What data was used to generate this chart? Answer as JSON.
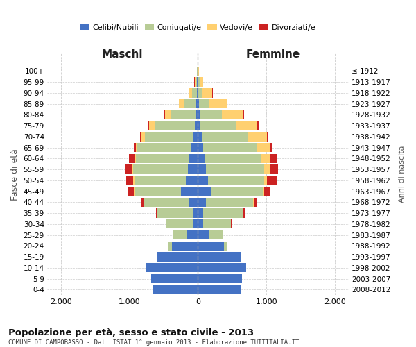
{
  "age_groups": [
    "0-4",
    "5-9",
    "10-14",
    "15-19",
    "20-24",
    "25-29",
    "30-34",
    "35-39",
    "40-44",
    "45-49",
    "50-54",
    "55-59",
    "60-64",
    "65-69",
    "70-74",
    "75-79",
    "80-84",
    "85-89",
    "90-94",
    "95-99",
    "100+"
  ],
  "birth_years": [
    "2008-2012",
    "2003-2007",
    "1998-2002",
    "1993-1997",
    "1988-1992",
    "1983-1987",
    "1978-1982",
    "1973-1977",
    "1968-1972",
    "1963-1967",
    "1958-1962",
    "1953-1957",
    "1948-1952",
    "1943-1947",
    "1938-1942",
    "1933-1937",
    "1928-1932",
    "1923-1927",
    "1918-1922",
    "1913-1917",
    "≤ 1912"
  ],
  "males": {
    "celibe": [
      650,
      680,
      760,
      600,
      380,
      160,
      80,
      80,
      130,
      250,
      180,
      150,
      130,
      100,
      70,
      50,
      35,
      25,
      15,
      10,
      5
    ],
    "coniugato": [
      0,
      0,
      0,
      5,
      50,
      200,
      380,
      520,
      650,
      680,
      750,
      800,
      780,
      780,
      700,
      580,
      350,
      170,
      70,
      25,
      5
    ],
    "vedovo": [
      0,
      0,
      0,
      0,
      0,
      0,
      0,
      5,
      10,
      10,
      15,
      15,
      20,
      30,
      50,
      80,
      100,
      80,
      45,
      15,
      5
    ],
    "divorziato": [
      0,
      0,
      0,
      0,
      0,
      0,
      5,
      10,
      40,
      80,
      100,
      90,
      80,
      25,
      20,
      10,
      10,
      5,
      5,
      2,
      0
    ]
  },
  "females": {
    "nubile": [
      620,
      640,
      700,
      620,
      380,
      170,
      80,
      80,
      120,
      200,
      150,
      120,
      110,
      75,
      55,
      40,
      25,
      15,
      10,
      5,
      2
    ],
    "coniugata": [
      0,
      0,
      0,
      5,
      50,
      200,
      400,
      580,
      680,
      750,
      820,
      850,
      820,
      780,
      680,
      520,
      320,
      140,
      60,
      18,
      3
    ],
    "vedova": [
      0,
      0,
      0,
      0,
      0,
      0,
      2,
      5,
      10,
      20,
      40,
      80,
      130,
      200,
      270,
      310,
      320,
      260,
      140,
      55,
      12
    ],
    "divorziata": [
      0,
      0,
      0,
      0,
      0,
      0,
      5,
      15,
      45,
      90,
      140,
      120,
      90,
      30,
      20,
      15,
      10,
      5,
      3,
      1,
      0
    ]
  },
  "color_celibe": "#4472C4",
  "color_coniugato": "#B8CC96",
  "color_vedovo": "#FFD070",
  "color_divorziato": "#CC2222",
  "title": "Popolazione per età, sesso e stato civile - 2013",
  "subtitle": "COMUNE DI CAMPOBASSO - Dati ISTAT 1° gennaio 2013 - Elaborazione TUTTITALIA.IT",
  "xlabel_left": "Maschi",
  "xlabel_right": "Femmine",
  "ylabel_left": "Fasce di età",
  "ylabel_right": "Anni di nascita",
  "xlim": 2200,
  "xtick_labels": [
    "2.000",
    "1.000",
    "0",
    "1.000",
    "2.000"
  ],
  "bg_color": "#FFFFFF",
  "grid_color": "#CCCCCC"
}
